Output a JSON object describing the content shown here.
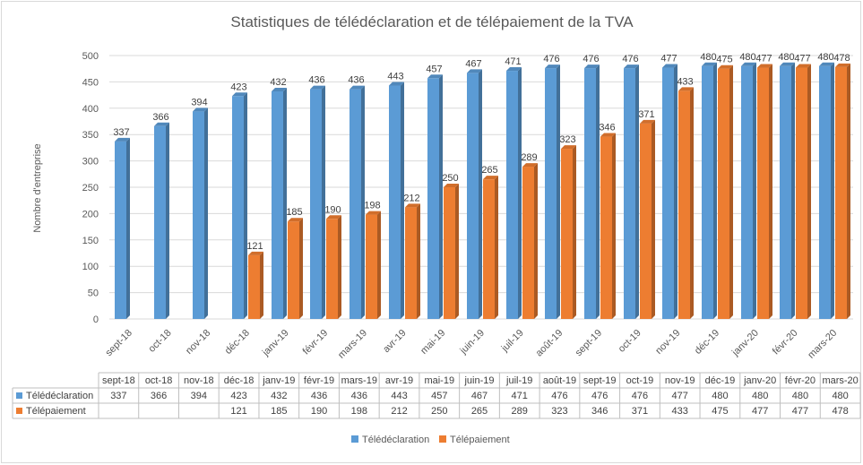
{
  "chart_data": {
    "type": "bar",
    "title": "Statistiques de télédéclaration et de télépaiement de la TVA",
    "xlabel": "",
    "ylabel": "Nombre d'entreprise",
    "ylim": [
      0,
      500
    ],
    "yticks": [
      0,
      50,
      100,
      150,
      200,
      250,
      300,
      350,
      400,
      450,
      500
    ],
    "grid": true,
    "legend_position": "bottom",
    "categories": [
      "sept-18",
      "oct-18",
      "nov-18",
      "déc-18",
      "janv-19",
      "févr-19",
      "mars-19",
      "avr-19",
      "mai-19",
      "juin-19",
      "juil-19",
      "août-19",
      "sept-19",
      "oct-19",
      "nov-19",
      "déc-19",
      "janv-20",
      "févr-20",
      "mars-20"
    ],
    "series": [
      {
        "name": "Télédéclaration",
        "color": "#5b9bd5",
        "values": [
          337,
          366,
          394,
          423,
          432,
          436,
          436,
          443,
          457,
          467,
          471,
          476,
          476,
          476,
          477,
          480,
          480,
          480,
          480
        ]
      },
      {
        "name": "Télépaiement",
        "color": "#ed7d31",
        "values": [
          null,
          null,
          null,
          121,
          185,
          190,
          198,
          212,
          250,
          265,
          289,
          323,
          346,
          371,
          433,
          475,
          477,
          477,
          478
        ]
      }
    ],
    "data_table": true
  }
}
